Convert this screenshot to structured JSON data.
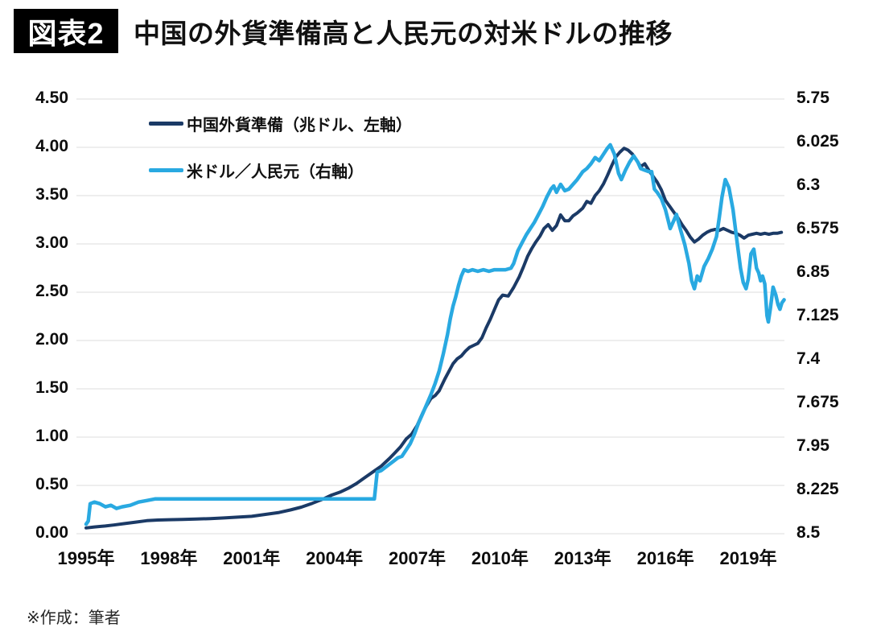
{
  "header": {
    "tag": "図表2",
    "title": "中国の外貨準備高と人民元の対米ドルの推移"
  },
  "footer": {
    "note": "※作成：筆者"
  },
  "legend": [
    {
      "label": "中国外貨準備（兆ドル、左軸）",
      "color": "#1b3a66"
    },
    {
      "label": "米ドル／人民元（右軸）",
      "color": "#29a9e1"
    }
  ],
  "chart_data": {
    "type": "line",
    "title": "中国の外貨準備高と人民元の対米ドルの推移",
    "grid_color": "#dcdcdc",
    "grid": true,
    "legend_position": "top-left-inside",
    "x_ticks": [
      {
        "year": 1995,
        "label": "1995年"
      },
      {
        "year": 1998,
        "label": "1998年"
      },
      {
        "year": 2001,
        "label": "2001年"
      },
      {
        "year": 2004,
        "label": "2004年"
      },
      {
        "year": 2007,
        "label": "2007年"
      },
      {
        "year": 2010,
        "label": "2010年"
      },
      {
        "year": 2013,
        "label": "2013年"
      },
      {
        "year": 2016,
        "label": "2016年"
      },
      {
        "year": 2019,
        "label": "2019年"
      }
    ],
    "left_axis": {
      "min": 0,
      "max": 4.5,
      "ticks": [
        "4.50",
        "4.00",
        "3.50",
        "3.00",
        "2.50",
        "2.00",
        "1.50",
        "1.00",
        "0.50",
        "0.00"
      ]
    },
    "right_axis": {
      "min": 5.75,
      "max": 8.5,
      "inverted": true,
      "ticks": [
        "5.75",
        "6.025",
        "6.3",
        "6.575",
        "6.85",
        "7.125",
        "7.4",
        "7.675",
        "7.95",
        "8.225",
        "8.5"
      ]
    },
    "series": [
      {
        "name": "中国外貨準備（兆ドル、左軸）",
        "axis": "left",
        "color": "#1b3a66",
        "points": [
          [
            1995.0,
            0.06
          ],
          [
            1995.3,
            0.07
          ],
          [
            1995.7,
            0.08
          ],
          [
            1996.0,
            0.09
          ],
          [
            1996.4,
            0.105
          ],
          [
            1996.8,
            0.12
          ],
          [
            1997.2,
            0.135
          ],
          [
            1997.6,
            0.142
          ],
          [
            1998.0,
            0.145
          ],
          [
            1998.5,
            0.148
          ],
          [
            1999.0,
            0.152
          ],
          [
            1999.5,
            0.157
          ],
          [
            2000.0,
            0.163
          ],
          [
            2000.5,
            0.172
          ],
          [
            2001.0,
            0.18
          ],
          [
            2001.5,
            0.2
          ],
          [
            2002.0,
            0.22
          ],
          [
            2002.4,
            0.246
          ],
          [
            2002.8,
            0.275
          ],
          [
            2003.2,
            0.315
          ],
          [
            2003.6,
            0.36
          ],
          [
            2003.9,
            0.4
          ],
          [
            2004.2,
            0.43
          ],
          [
            2004.5,
            0.47
          ],
          [
            2004.8,
            0.52
          ],
          [
            2005.1,
            0.58
          ],
          [
            2005.4,
            0.64
          ],
          [
            2005.7,
            0.7
          ],
          [
            2006.0,
            0.78
          ],
          [
            2006.2,
            0.84
          ],
          [
            2006.4,
            0.9
          ],
          [
            2006.6,
            0.98
          ],
          [
            2006.8,
            1.03
          ],
          [
            2007.0,
            1.12
          ],
          [
            2007.2,
            1.25
          ],
          [
            2007.35,
            1.33
          ],
          [
            2007.5,
            1.4
          ],
          [
            2007.65,
            1.43
          ],
          [
            2007.8,
            1.48
          ],
          [
            2008.0,
            1.6
          ],
          [
            2008.15,
            1.68
          ],
          [
            2008.3,
            1.76
          ],
          [
            2008.45,
            1.81
          ],
          [
            2008.6,
            1.84
          ],
          [
            2008.75,
            1.89
          ],
          [
            2008.9,
            1.93
          ],
          [
            2009.05,
            1.95
          ],
          [
            2009.2,
            1.97
          ],
          [
            2009.35,
            2.03
          ],
          [
            2009.5,
            2.13
          ],
          [
            2009.65,
            2.22
          ],
          [
            2009.8,
            2.32
          ],
          [
            2009.95,
            2.42
          ],
          [
            2010.1,
            2.47
          ],
          [
            2010.3,
            2.46
          ],
          [
            2010.5,
            2.55
          ],
          [
            2010.7,
            2.66
          ],
          [
            2010.85,
            2.76
          ],
          [
            2011.0,
            2.87
          ],
          [
            2011.15,
            2.95
          ],
          [
            2011.3,
            3.02
          ],
          [
            2011.45,
            3.08
          ],
          [
            2011.6,
            3.16
          ],
          [
            2011.75,
            3.2
          ],
          [
            2011.9,
            3.14
          ],
          [
            2012.05,
            3.19
          ],
          [
            2012.2,
            3.3
          ],
          [
            2012.35,
            3.24
          ],
          [
            2012.5,
            3.24
          ],
          [
            2012.65,
            3.29
          ],
          [
            2012.8,
            3.32
          ],
          [
            2013.0,
            3.37
          ],
          [
            2013.15,
            3.44
          ],
          [
            2013.3,
            3.42
          ],
          [
            2013.45,
            3.5
          ],
          [
            2013.6,
            3.55
          ],
          [
            2013.75,
            3.62
          ],
          [
            2013.9,
            3.71
          ],
          [
            2014.05,
            3.81
          ],
          [
            2014.2,
            3.9
          ],
          [
            2014.35,
            3.95
          ],
          [
            2014.5,
            3.99
          ],
          [
            2014.65,
            3.97
          ],
          [
            2014.8,
            3.93
          ],
          [
            2014.95,
            3.87
          ],
          [
            2015.1,
            3.8
          ],
          [
            2015.25,
            3.83
          ],
          [
            2015.4,
            3.76
          ],
          [
            2015.55,
            3.7
          ],
          [
            2015.7,
            3.64
          ],
          [
            2015.85,
            3.56
          ],
          [
            2016.0,
            3.45
          ],
          [
            2016.15,
            3.39
          ],
          [
            2016.3,
            3.33
          ],
          [
            2016.45,
            3.27
          ],
          [
            2016.6,
            3.2
          ],
          [
            2016.75,
            3.14
          ],
          [
            2016.9,
            3.07
          ],
          [
            2017.05,
            3.02
          ],
          [
            2017.2,
            3.05
          ],
          [
            2017.35,
            3.09
          ],
          [
            2017.5,
            3.12
          ],
          [
            2017.65,
            3.14
          ],
          [
            2017.8,
            3.15
          ],
          [
            2017.95,
            3.14
          ],
          [
            2018.1,
            3.16
          ],
          [
            2018.25,
            3.14
          ],
          [
            2018.4,
            3.12
          ],
          [
            2018.55,
            3.11
          ],
          [
            2018.7,
            3.09
          ],
          [
            2018.85,
            3.06
          ],
          [
            2019.0,
            3.09
          ],
          [
            2019.15,
            3.1
          ],
          [
            2019.3,
            3.11
          ],
          [
            2019.45,
            3.1
          ],
          [
            2019.6,
            3.11
          ],
          [
            2019.75,
            3.1
          ],
          [
            2019.9,
            3.11
          ],
          [
            2020.05,
            3.11
          ],
          [
            2020.2,
            3.12
          ]
        ]
      },
      {
        "name": "米ドル／人民元（右軸）",
        "axis": "right",
        "color": "#29a9e1",
        "points": [
          [
            1995.0,
            8.44
          ],
          [
            1995.08,
            8.42
          ],
          [
            1995.15,
            8.31
          ],
          [
            1995.3,
            8.3
          ],
          [
            1995.5,
            8.31
          ],
          [
            1995.7,
            8.33
          ],
          [
            1995.9,
            8.32
          ],
          [
            1996.1,
            8.34
          ],
          [
            1996.3,
            8.33
          ],
          [
            1996.6,
            8.32
          ],
          [
            1996.9,
            8.3
          ],
          [
            1997.2,
            8.29
          ],
          [
            1997.5,
            8.28
          ],
          [
            1998.0,
            8.28
          ],
          [
            1999.0,
            8.28
          ],
          [
            2000.0,
            8.28
          ],
          [
            2001.0,
            8.28
          ],
          [
            2002.0,
            8.28
          ],
          [
            2003.0,
            8.28
          ],
          [
            2004.0,
            8.28
          ],
          [
            2005.0,
            8.28
          ],
          [
            2005.45,
            8.28
          ],
          [
            2005.55,
            8.11
          ],
          [
            2005.7,
            8.1
          ],
          [
            2005.85,
            8.08
          ],
          [
            2006.0,
            8.06
          ],
          [
            2006.15,
            8.04
          ],
          [
            2006.3,
            8.02
          ],
          [
            2006.45,
            8.01
          ],
          [
            2006.6,
            7.97
          ],
          [
            2006.75,
            7.93
          ],
          [
            2006.9,
            7.87
          ],
          [
            2007.05,
            7.8
          ],
          [
            2007.2,
            7.74
          ],
          [
            2007.35,
            7.68
          ],
          [
            2007.5,
            7.62
          ],
          [
            2007.65,
            7.55
          ],
          [
            2007.8,
            7.47
          ],
          [
            2007.95,
            7.36
          ],
          [
            2008.1,
            7.24
          ],
          [
            2008.2,
            7.14
          ],
          [
            2008.3,
            7.06
          ],
          [
            2008.4,
            7.0
          ],
          [
            2008.5,
            6.93
          ],
          [
            2008.6,
            6.87
          ],
          [
            2008.7,
            6.83
          ],
          [
            2008.85,
            6.84
          ],
          [
            2009.0,
            6.83
          ],
          [
            2009.2,
            6.84
          ],
          [
            2009.4,
            6.83
          ],
          [
            2009.6,
            6.84
          ],
          [
            2009.8,
            6.83
          ],
          [
            2010.0,
            6.83
          ],
          [
            2010.2,
            6.83
          ],
          [
            2010.4,
            6.82
          ],
          [
            2010.5,
            6.79
          ],
          [
            2010.65,
            6.71
          ],
          [
            2010.8,
            6.66
          ],
          [
            2010.95,
            6.61
          ],
          [
            2011.1,
            6.57
          ],
          [
            2011.25,
            6.53
          ],
          [
            2011.4,
            6.48
          ],
          [
            2011.55,
            6.43
          ],
          [
            2011.7,
            6.37
          ],
          [
            2011.85,
            6.32
          ],
          [
            2011.95,
            6.3
          ],
          [
            2012.05,
            6.34
          ],
          [
            2012.2,
            6.29
          ],
          [
            2012.35,
            6.33
          ],
          [
            2012.5,
            6.32
          ],
          [
            2012.65,
            6.29
          ],
          [
            2012.8,
            6.26
          ],
          [
            2013.0,
            6.21
          ],
          [
            2013.15,
            6.19
          ],
          [
            2013.3,
            6.16
          ],
          [
            2013.45,
            6.12
          ],
          [
            2013.6,
            6.14
          ],
          [
            2013.75,
            6.1
          ],
          [
            2013.9,
            6.06
          ],
          [
            2014.0,
            6.04
          ],
          [
            2014.15,
            6.1
          ],
          [
            2014.3,
            6.22
          ],
          [
            2014.4,
            6.26
          ],
          [
            2014.55,
            6.2
          ],
          [
            2014.7,
            6.15
          ],
          [
            2014.85,
            6.11
          ],
          [
            2015.0,
            6.15
          ],
          [
            2015.1,
            6.19
          ],
          [
            2015.25,
            6.2
          ],
          [
            2015.4,
            6.21
          ],
          [
            2015.5,
            6.21
          ],
          [
            2015.6,
            6.32
          ],
          [
            2015.7,
            6.34
          ],
          [
            2015.85,
            6.38
          ],
          [
            2016.0,
            6.45
          ],
          [
            2016.1,
            6.52
          ],
          [
            2016.17,
            6.57
          ],
          [
            2016.3,
            6.52
          ],
          [
            2016.4,
            6.48
          ],
          [
            2016.55,
            6.58
          ],
          [
            2016.7,
            6.67
          ],
          [
            2016.85,
            6.79
          ],
          [
            2016.95,
            6.9
          ],
          [
            2017.05,
            6.95
          ],
          [
            2017.15,
            6.87
          ],
          [
            2017.25,
            6.9
          ],
          [
            2017.4,
            6.81
          ],
          [
            2017.55,
            6.76
          ],
          [
            2017.7,
            6.7
          ],
          [
            2017.85,
            6.62
          ],
          [
            2017.95,
            6.5
          ],
          [
            2018.05,
            6.37
          ],
          [
            2018.17,
            6.26
          ],
          [
            2018.3,
            6.31
          ],
          [
            2018.45,
            6.45
          ],
          [
            2018.6,
            6.66
          ],
          [
            2018.72,
            6.82
          ],
          [
            2018.82,
            6.91
          ],
          [
            2018.92,
            6.95
          ],
          [
            2019.0,
            6.89
          ],
          [
            2019.1,
            6.73
          ],
          [
            2019.2,
            6.7
          ],
          [
            2019.3,
            6.82
          ],
          [
            2019.38,
            6.85
          ],
          [
            2019.45,
            6.9
          ],
          [
            2019.52,
            6.87
          ],
          [
            2019.6,
            6.92
          ],
          [
            2019.68,
            7.12
          ],
          [
            2019.73,
            7.16
          ],
          [
            2019.8,
            7.08
          ],
          [
            2019.9,
            6.94
          ],
          [
            2020.0,
            6.99
          ],
          [
            2020.08,
            7.05
          ],
          [
            2020.15,
            7.08
          ],
          [
            2020.22,
            7.04
          ],
          [
            2020.3,
            7.02
          ]
        ]
      }
    ]
  }
}
